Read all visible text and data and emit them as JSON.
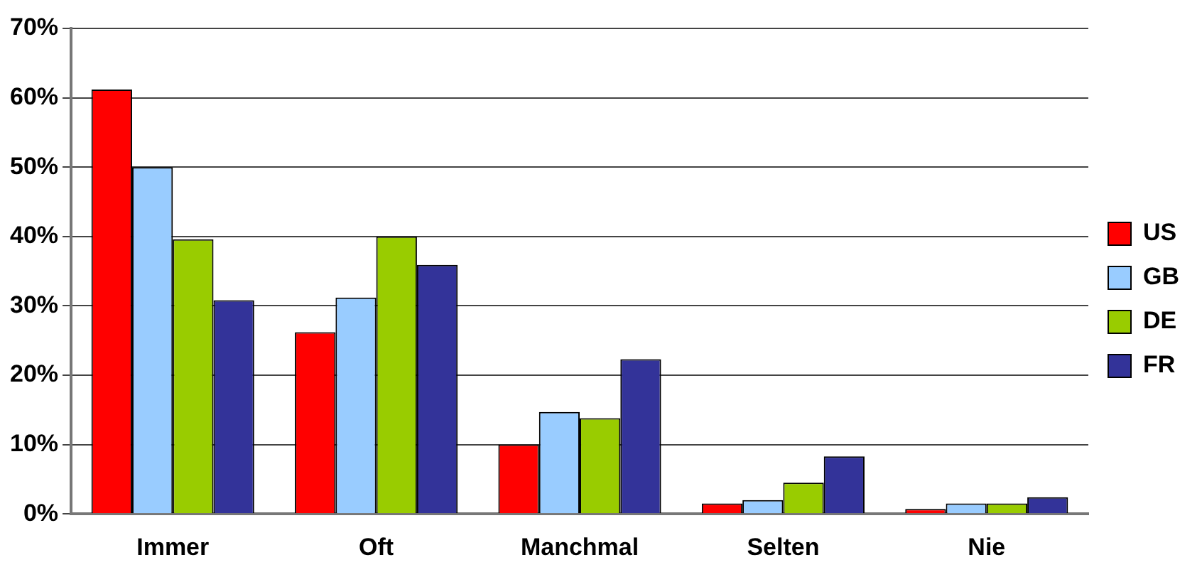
{
  "chart_data": {
    "type": "bar",
    "categories": [
      "Immer",
      "Oft",
      "Manchmal",
      "Selten",
      "Nie"
    ],
    "series": [
      {
        "name": "US",
        "color": "#ff0000",
        "values": [
          61.2,
          26.2,
          10,
          1.5,
          0.7
        ]
      },
      {
        "name": "GB",
        "color": "#99ccff",
        "values": [
          50,
          31.2,
          14.7,
          2,
          1.5
        ]
      },
      {
        "name": "DE",
        "color": "#99cc00",
        "values": [
          39.6,
          40,
          13.8,
          4.5,
          1.5
        ]
      },
      {
        "name": "FR",
        "color": "#333399",
        "values": [
          30.8,
          35.9,
          22.3,
          8.3,
          2.4
        ]
      }
    ],
    "ylim": [
      0,
      70
    ],
    "yticks": [
      {
        "value": 0,
        "label": "0%"
      },
      {
        "value": 10,
        "label": "10%"
      },
      {
        "value": 20,
        "label": "20%"
      },
      {
        "value": 30,
        "label": "30%"
      },
      {
        "value": 40,
        "label": "40%"
      },
      {
        "value": 50,
        "label": "50%"
      },
      {
        "value": 60,
        "label": "60%"
      },
      {
        "value": 70,
        "label": "70%"
      }
    ],
    "grid": "y",
    "legend": "right"
  }
}
